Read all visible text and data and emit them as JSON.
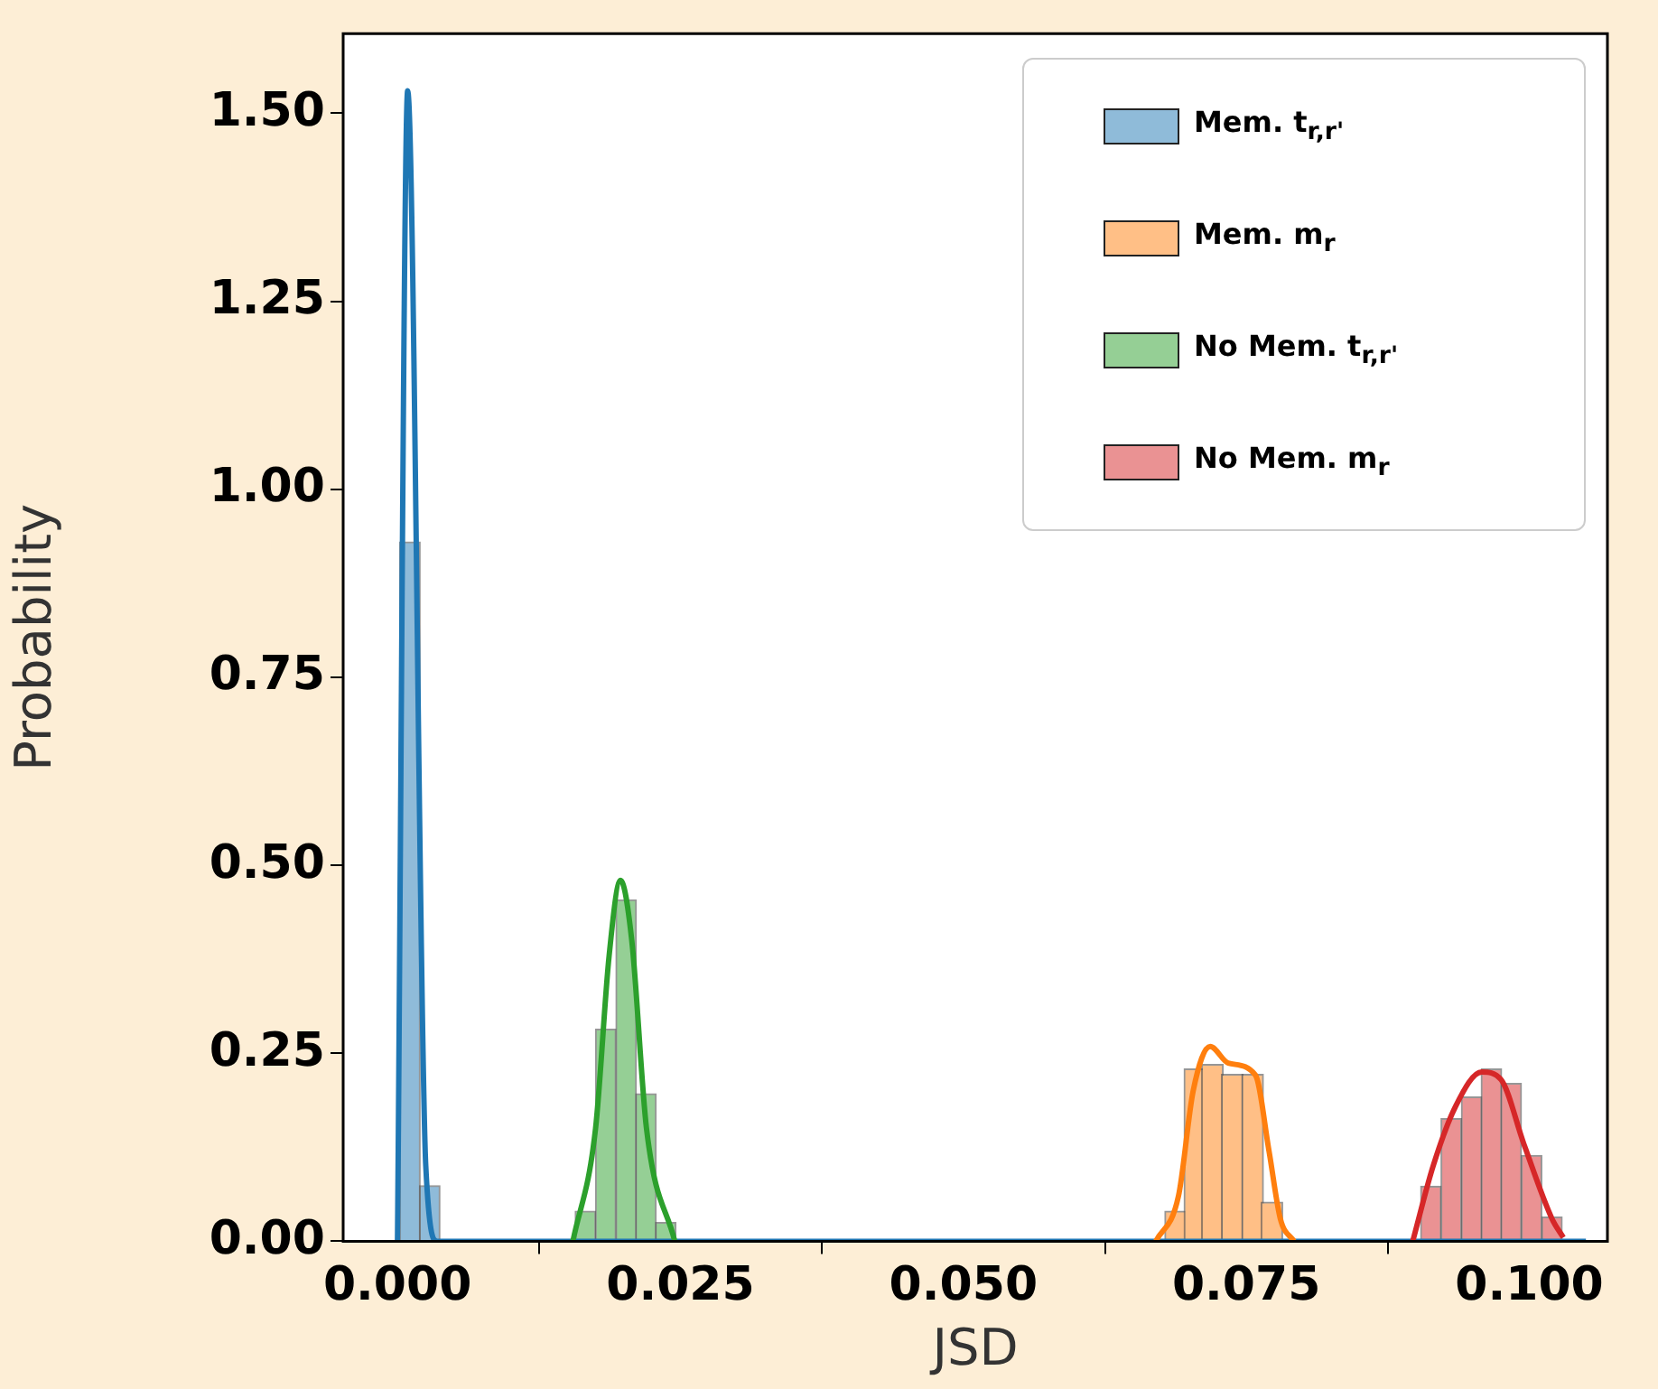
{
  "chart_data": {
    "type": "histogram",
    "xlabel": "JSD",
    "ylabel": "Probability",
    "xlim": [
      -0.0048,
      0.1069
    ],
    "ylim": [
      0,
      1.606
    ],
    "xticks": [
      {
        "value": 0,
        "label": "0.000"
      },
      {
        "value": 0.025,
        "label": "0.025"
      },
      {
        "value": 0.05,
        "label": "0.050"
      },
      {
        "value": 0.075,
        "label": "0.075"
      },
      {
        "value": 0.1,
        "label": "0.100"
      }
    ],
    "yticks": [
      {
        "value": 0,
        "label": "0.00"
      },
      {
        "value": 0.25,
        "label": "0.25"
      },
      {
        "value": 0.5,
        "label": "0.50"
      },
      {
        "value": 0.75,
        "label": "0.75"
      },
      {
        "value": 1,
        "label": "1.00"
      },
      {
        "value": 1.25,
        "label": "1.25"
      },
      {
        "value": 1.5,
        "label": "1.50"
      }
    ],
    "legend": "top right",
    "series": [
      {
        "name": "Mem. t$_{r,r'}$",
        "color": "#8fbbd9",
        "bins": [
          0.0002,
          0.002,
          0.0037
        ],
        "values": [
          0.93,
          0.074
        ]
      },
      {
        "name": "Mem. m$_{r}$",
        "color": "#ffbf86",
        "bins": [
          0.0678,
          0.0697,
          0.0712,
          0.0728,
          0.0747,
          0.0764,
          0.0781
        ],
        "values": [
          0.04,
          0.229,
          0.235,
          0.222,
          0.222,
          0.052
        ]
      },
      {
        "name": "No Mem. t$_{r,r'}$",
        "color": "#95cf95",
        "bins": [
          0.0157,
          0.0175,
          0.0193,
          0.0211,
          0.0228,
          0.0246
        ],
        "values": [
          0.04,
          0.282,
          0.454,
          0.196,
          0.025
        ]
      },
      {
        "name": "No Mem. m$_{r}$",
        "color": "#ea9293",
        "bins": [
          0.0904,
          0.0922,
          0.094,
          0.0958,
          0.0975,
          0.0993,
          0.1011,
          0.1029
        ],
        "values": [
          0.073,
          0.163,
          0.192,
          0.229,
          0.21,
          0.114,
          0.032
        ]
      },
      {
        "type": "line",
        "color": "#ff7f0e",
        "x": [
          0.067,
          0.069,
          0.0703,
          0.0718,
          0.0734,
          0.0758,
          0.077,
          0.078,
          0.0792
        ],
        "values": [
          0,
          0.06,
          0.2,
          0.259,
          0.237,
          0.221,
          0.12,
          0.03,
          0
        ]
      },
      {
        "type": "line",
        "color": "#2ca02c",
        "x": [
          0.0155,
          0.0175,
          0.0187,
          0.0197,
          0.0207,
          0.022,
          0.0245
        ],
        "values": [
          0,
          0.15,
          0.38,
          0.48,
          0.4,
          0.15,
          0
        ]
      },
      {
        "type": "line",
        "color": "#d62728",
        "x": [
          0.0897,
          0.0915,
          0.0935,
          0.0958,
          0.0975,
          0.0995,
          0.102,
          0.103
        ],
        "values": [
          0,
          0.1,
          0.18,
          0.225,
          0.215,
          0.13,
          0.03,
          0.005
        ]
      },
      {
        "type": "line",
        "color": "#1f77b4",
        "x": [
          0,
          0.0009,
          0.0025,
          0.0035,
          0.105
        ],
        "values": [
          0,
          1.53,
          0.1,
          0,
          0
        ]
      }
    ]
  }
}
